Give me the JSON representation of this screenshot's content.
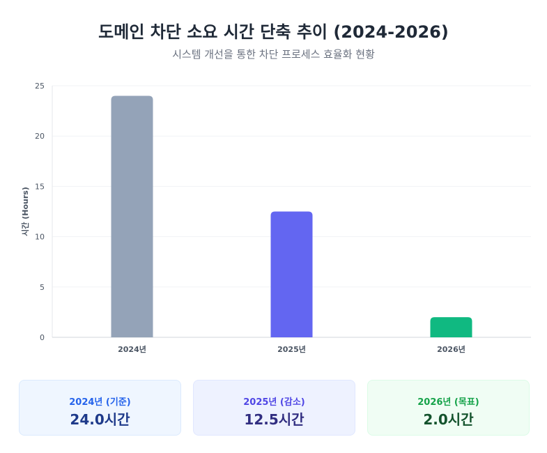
{
  "header": {
    "title": "도메인 차단 소요 시간 단축 추이 (2024-2026)",
    "subtitle": "시스템 개선을 통한 차단 프로세스 효율화 현황"
  },
  "chart_data": {
    "type": "bar",
    "categories": [
      "2024년",
      "2025년",
      "2026년"
    ],
    "values": [
      24.0,
      12.5,
      2.0
    ],
    "colors": [
      "#94a3b8",
      "#6366f1",
      "#10b981"
    ],
    "ylabel": "시간 (Hours)",
    "ylim": [
      0,
      25
    ],
    "yticks": [
      0,
      5,
      10,
      15,
      20,
      25
    ],
    "grid": true
  },
  "summary_cards": [
    {
      "label": "2024년 (기준)",
      "value": "24.0시간"
    },
    {
      "label": "2025년 (감소)",
      "value": "12.5시간"
    },
    {
      "label": "2026년 (목표)",
      "value": "2.0시간"
    }
  ]
}
